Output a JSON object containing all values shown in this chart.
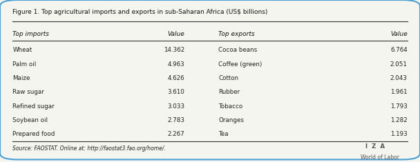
{
  "title": "Figure 1. Top agricultural imports and exports in sub-Saharan Africa (US$ billions)",
  "imports": [
    "Wheat",
    "Palm oil",
    "Maize",
    "Raw sugar",
    "Refined sugar",
    "Soybean oil",
    "Prepared food"
  ],
  "import_values": [
    "14.362",
    "4.963",
    "4.626",
    "3.610",
    "3.033",
    "2.783",
    "2.267"
  ],
  "exports": [
    "Cocoa beans",
    "Coffee (green)",
    "Cotton",
    "Rubber",
    "Tobacco",
    "Oranges",
    "Tea"
  ],
  "export_values": [
    "6.764",
    "2.051",
    "2.043",
    "1.961",
    "1.793",
    "1.282",
    "1.193"
  ],
  "col_headers": [
    "Top imports",
    "Value",
    "Top exports",
    "Value"
  ],
  "source": "Source: FAOSTAT. Online at: http://faostat3.fao.org/home/.",
  "iza_line1": "I  Z  A",
  "iza_line2": "World of Labor",
  "bg_color": "#f5f5f0",
  "border_color": "#4a9fd4",
  "text_color": "#222222",
  "header_color": "#111111",
  "title_color": "#111111"
}
